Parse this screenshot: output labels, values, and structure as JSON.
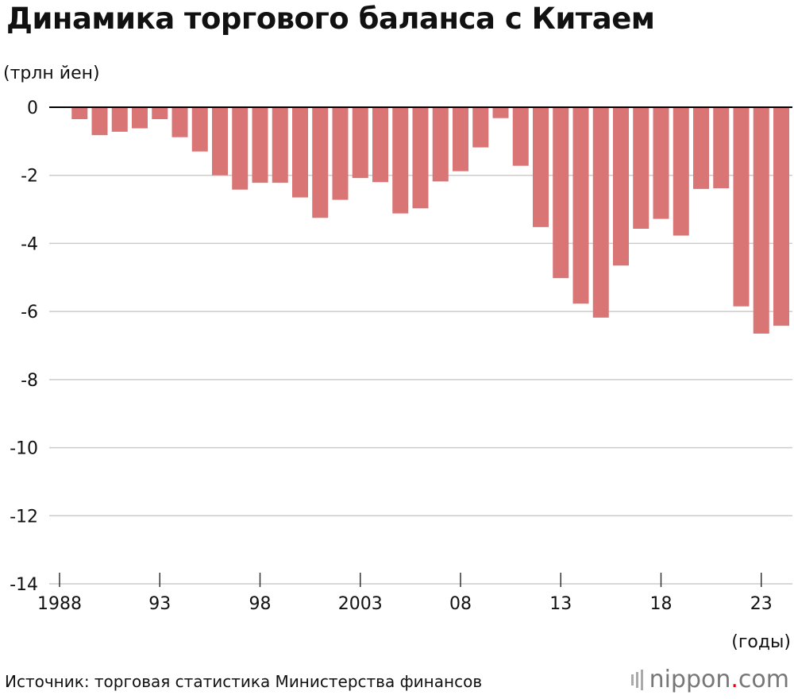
{
  "title": "Динамика торгового баланса с Китаем",
  "source": "Источник: торговая статистика Министерства финансов",
  "logo": {
    "text_main": "nippon",
    "text_dot": ".",
    "text_tail": "com"
  },
  "colors": {
    "bar": "#d97575",
    "grid": "#cccccc",
    "zero_line": "#000000"
  },
  "chart_data": {
    "type": "bar",
    "ylabel": "(трлн йен)",
    "xlabel": "(годы)",
    "ylim": [
      -14,
      0
    ],
    "yticks": [
      0,
      -2,
      -4,
      -6,
      -8,
      -10,
      -12,
      -14
    ],
    "xticks": [
      {
        "year": 1988,
        "label": "1988"
      },
      {
        "year": 1993,
        "label": "93"
      },
      {
        "year": 1998,
        "label": "98"
      },
      {
        "year": 2003,
        "label": "2003"
      },
      {
        "year": 2008,
        "label": "08"
      },
      {
        "year": 2013,
        "label": "13"
      },
      {
        "year": 2018,
        "label": "18"
      },
      {
        "year": 2023,
        "label": "23"
      }
    ],
    "grid": true,
    "categories": [
      1988,
      1989,
      1990,
      1991,
      1992,
      1993,
      1994,
      1995,
      1996,
      1997,
      1998,
      1999,
      2000,
      2001,
      2002,
      2003,
      2004,
      2005,
      2006,
      2007,
      2008,
      2009,
      2010,
      2011,
      2012,
      2013,
      2014,
      2015,
      2016,
      2017,
      2018,
      2019,
      2020,
      2021,
      2022,
      2023,
      2024
    ],
    "values": [
      -0.02,
      -0.35,
      -0.82,
      -0.72,
      -0.62,
      -0.35,
      -0.88,
      -1.3,
      -2.0,
      -2.42,
      -2.22,
      -2.22,
      -2.65,
      -3.25,
      -2.72,
      -2.08,
      -2.2,
      -3.12,
      -2.97,
      -2.18,
      -1.88,
      -1.18,
      -0.32,
      -1.72,
      -3.52,
      -5.02,
      -5.77,
      -6.18,
      -4.65,
      -3.57,
      -3.28,
      -3.77,
      -2.4,
      -2.38,
      -5.85,
      -6.65,
      -6.42
    ]
  }
}
